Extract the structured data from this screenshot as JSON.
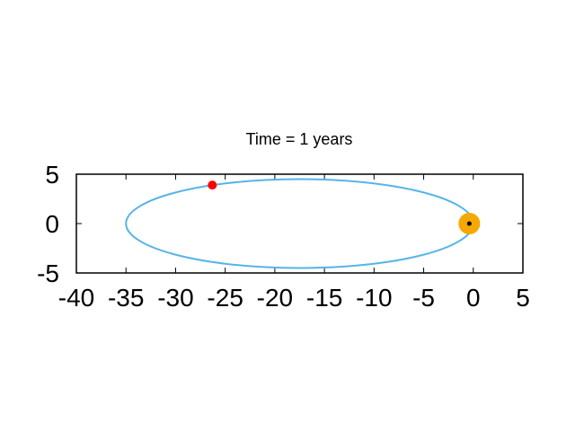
{
  "chart_data": {
    "type": "scatter",
    "title": "Time = 1 years",
    "xlabel": "",
    "ylabel": "",
    "xlim": [
      -40,
      5
    ],
    "ylim": [
      -5,
      5
    ],
    "x_ticks": [
      -40,
      -35,
      -30,
      -25,
      -20,
      -15,
      -10,
      -5,
      0,
      5
    ],
    "y_ticks": [
      -5,
      0,
      5
    ],
    "grid": false,
    "orbit": {
      "center_x": -17.5,
      "center_y": 0,
      "semi_major": 17.5,
      "semi_minor": 4.5,
      "color": "#56b4e9"
    },
    "sun": {
      "x": -0.4,
      "y": 0,
      "color": "#f5a800"
    },
    "focus_marker": {
      "x": -0.4,
      "y": 0,
      "color": "#000000"
    },
    "body": {
      "x": -26.3,
      "y": 3.9,
      "color": "#ff0000"
    }
  }
}
